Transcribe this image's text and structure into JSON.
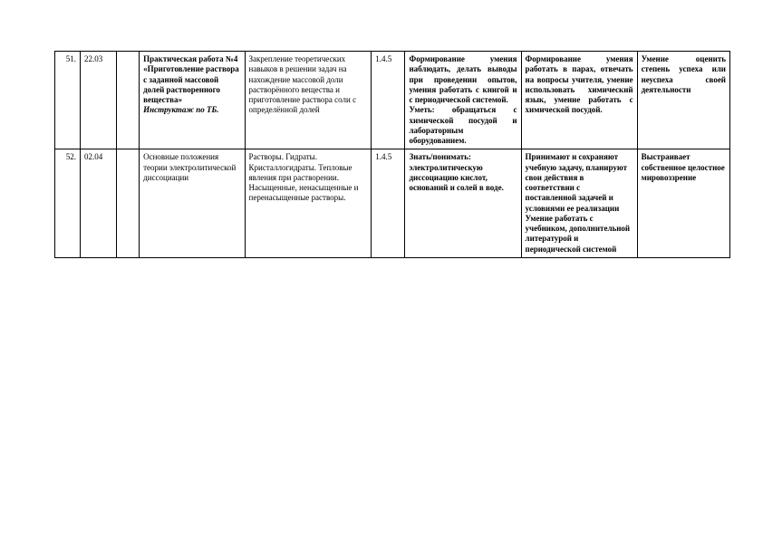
{
  "columns": [
    "num",
    "date",
    "blank",
    "topic",
    "content",
    "code",
    "know",
    "skills",
    "result"
  ],
  "rows": [
    {
      "num": "51.",
      "date": "22.03",
      "blank": "",
      "topic_bold": "Практическая работа №4\n«Приготовление раствора с заданной массовой долей растворенного вещества»",
      "topic_italic": "Инструктаж по ТБ.",
      "content": "Закрепление теоретических навыков в решении задач на нахождение массовой доли растворённого вещества и приготовление раствора соли с определённой долей",
      "code": "1.4.5",
      "know": "Формирование умения наблюдать, делать выводы при проведении опытов, умения работать с книгой и с периодической системой.\nУметь: обращаться с химической посудой и лабораторным оборудованием.",
      "skills": "Формирование умения работать в парах, отвечать на вопросы учителя, умение использовать химический язык, умение работать с химической посудой.",
      "result": "Умение оценить степень успеха или неуспеха своей деятельности"
    },
    {
      "num": "52.",
      "date": "02.04",
      "blank": "",
      "topic_plain": "Основные положения теории электролитической диссоциации",
      "content": "Растворы. Гидраты. Кристаллогидраты. Тепловые явления при растворении. Насыщенные, ненасыщенные и перенасыщенные растворы.",
      "code": "1.4.5",
      "know_bold": "Знать/понимать:",
      "know_rest": " электролитическую диссоциацию кислот, оснований и солей в воде.",
      "skills": "Принимают и сохраняют учебную задачу, планируют свои действия в соответствии с поставленной задачей и условиями ее реализации\nУмение работать с учебником, дополнительной литературой и периодической системой",
      "result": "Выстраивает собственное целостное мировоззрение"
    }
  ]
}
